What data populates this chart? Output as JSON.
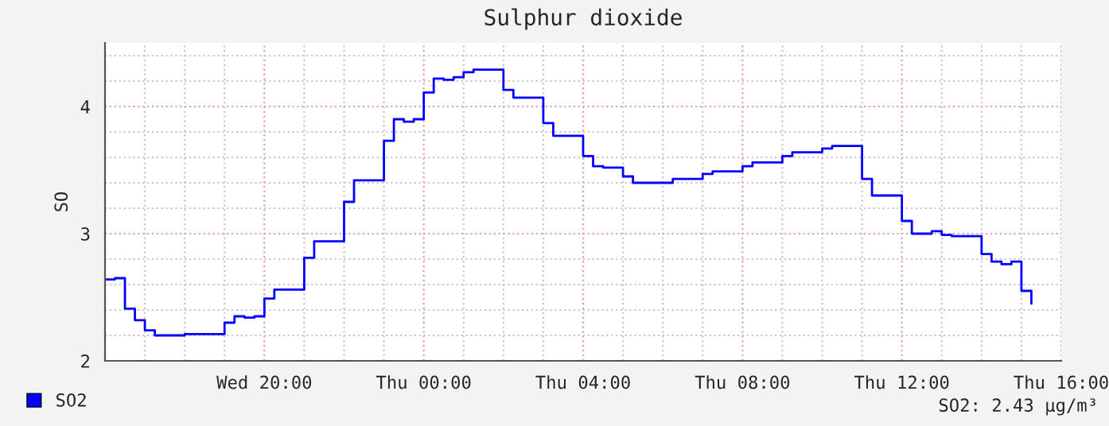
{
  "chart_data": {
    "type": "step",
    "title": "Sulphur dioxide",
    "ylabel": "SO",
    "categories": [
      null,
      null,
      null,
      null,
      null,
      null,
      null,
      null,
      null,
      null,
      null,
      null,
      null,
      null,
      null,
      null,
      "Wed 20:00",
      null,
      null,
      null,
      null,
      null,
      null,
      null,
      null,
      null,
      null,
      null,
      null,
      null,
      null,
      null,
      "Thu 00:00",
      null,
      null,
      null,
      null,
      null,
      null,
      null,
      null,
      null,
      null,
      null,
      null,
      null,
      null,
      null,
      "Thu 04:00",
      null,
      null,
      null,
      null,
      null,
      null,
      null,
      null,
      null,
      null,
      null,
      null,
      null,
      null,
      null,
      "Thu 08:00",
      null,
      null,
      null,
      null,
      null,
      null,
      null,
      null,
      null,
      null,
      null,
      null,
      null,
      null,
      null,
      "Thu 12:00",
      null,
      null,
      null,
      null,
      null,
      null,
      null,
      null,
      null,
      null,
      null,
      null,
      null,
      null,
      null,
      "Thu 16:00"
    ],
    "series": [
      {
        "name": "SO2",
        "color": "#0000ff",
        "values": [
          2.64,
          2.65,
          2.41,
          2.32,
          2.24,
          2.2,
          2.2,
          2.2,
          2.21,
          2.21,
          2.21,
          2.21,
          2.3,
          2.35,
          2.34,
          2.35,
          2.49,
          2.56,
          2.56,
          2.56,
          2.81,
          2.94,
          2.94,
          2.94,
          3.25,
          3.42,
          3.42,
          3.42,
          3.73,
          3.9,
          3.88,
          3.9,
          4.11,
          4.22,
          4.21,
          4.23,
          4.27,
          4.29,
          4.29,
          4.29,
          4.13,
          4.07,
          4.07,
          4.07,
          3.87,
          3.77,
          3.77,
          3.77,
          3.61,
          3.53,
          3.52,
          3.52,
          3.45,
          3.4,
          3.4,
          3.4,
          3.4,
          3.43,
          3.43,
          3.43,
          3.47,
          3.49,
          3.49,
          3.49,
          3.53,
          3.56,
          3.56,
          3.56,
          3.61,
          3.64,
          3.64,
          3.64,
          3.67,
          3.69,
          3.69,
          3.69,
          3.43,
          3.3,
          3.3,
          3.3,
          3.1,
          3.0,
          3.0,
          3.02,
          2.99,
          2.98,
          2.98,
          2.98,
          2.84,
          2.78,
          2.76,
          2.78,
          2.55,
          2.45,
          null,
          null,
          null
        ]
      }
    ],
    "ylim": [
      2,
      4.5
    ],
    "yticks": [
      2,
      3,
      4
    ],
    "grid": true,
    "legend": "bottom left",
    "annotations": [
      "SO2: 2.43 µg/m³"
    ]
  }
}
